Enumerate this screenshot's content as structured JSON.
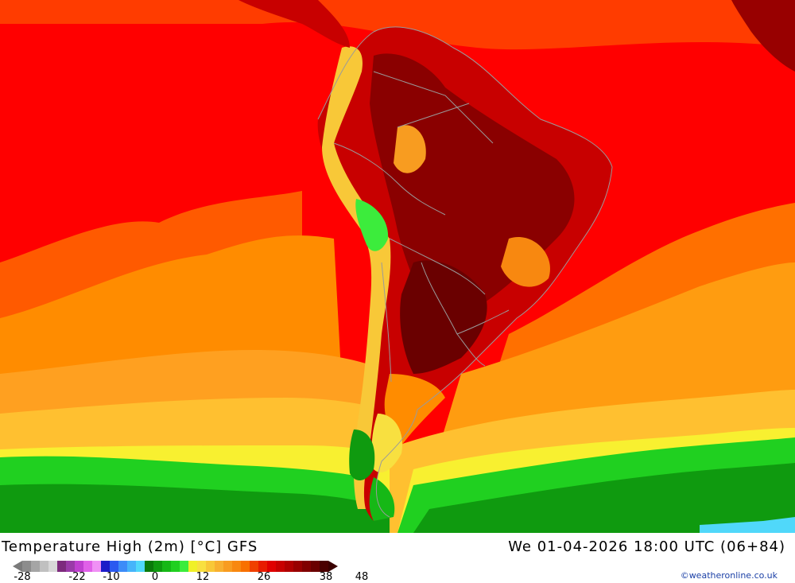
{
  "map": {
    "title": "Temperature High (2m) [°C] GFS",
    "datetime": "We 01-04-2026 18:00 UTC (06+84)",
    "credit": "©weatheronline.co.uk",
    "legend": {
      "ticks": [
        "-28",
        "-22",
        "-10",
        "0",
        "12",
        "26",
        "38",
        "48"
      ],
      "colors": [
        "#8c8c8c",
        "#a5a5a5",
        "#c0c0c0",
        "#d8d8d8",
        "#7d2a7d",
        "#9a3aa8",
        "#c040d0",
        "#e060e8",
        "#f090f5",
        "#1c1cc8",
        "#2a5af0",
        "#3c8cf8",
        "#46b4fa",
        "#50d8fa",
        "#0a7a0a",
        "#0f9a0f",
        "#16b816",
        "#20d020",
        "#3cec3c",
        "#f0f028",
        "#f8e040",
        "#f8c838",
        "#f8b030",
        "#f89c20",
        "#f88810",
        "#f87000",
        "#f04000",
        "#e81c00",
        "#e00000",
        "#c80000",
        "#b00000",
        "#980000",
        "#800000",
        "#6a0000",
        "#4a0000"
      ]
    }
  }
}
